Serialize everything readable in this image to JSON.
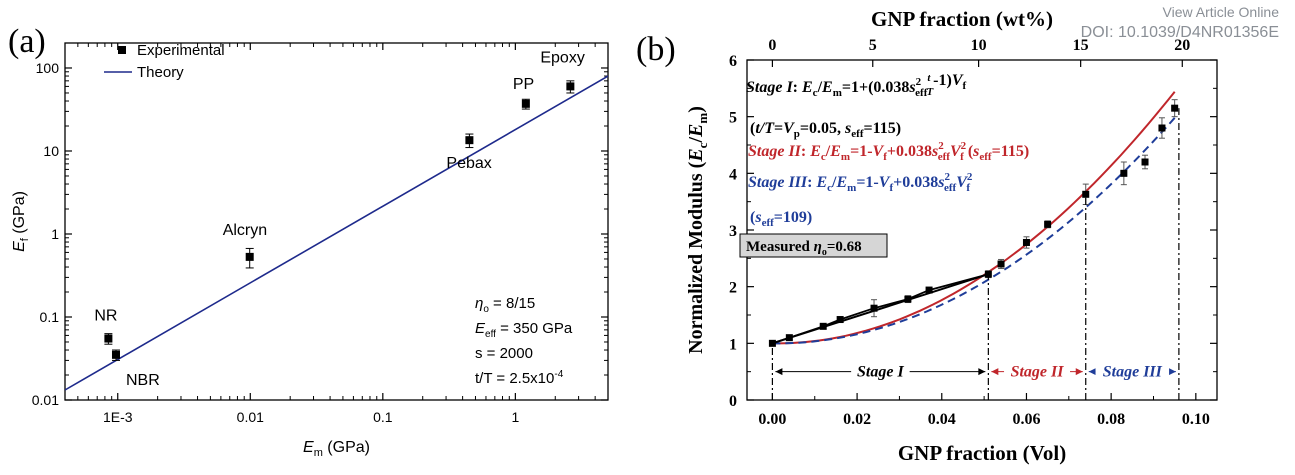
{
  "header": {
    "view_article": "View Article Online",
    "doi": "DOI: 10.1039/D4NR01356E"
  },
  "chart_data": [
    {
      "type": "scatter",
      "panel_label": "(a)",
      "xlabel": "E_m (GPa)",
      "ylabel": "E_f (GPa)",
      "xscale": "log",
      "yscale": "log",
      "xlim": [
        0.0004,
        5
      ],
      "ylim": [
        0.01,
        200
      ],
      "x_ticks": [
        {
          "v": 0.001,
          "label": "1E-3"
        },
        {
          "v": 0.01,
          "label": "0.01"
        },
        {
          "v": 0.1,
          "label": "0.1"
        },
        {
          "v": 1,
          "label": "1"
        }
      ],
      "y_ticks": [
        {
          "v": 0.01,
          "label": "0.01"
        },
        {
          "v": 0.1,
          "label": "0.1"
        },
        {
          "v": 1,
          "label": "1"
        },
        {
          "v": 10,
          "label": "10"
        },
        {
          "v": 100,
          "label": "100"
        }
      ],
      "legend": {
        "position": "top-left",
        "entries": [
          "Experimental",
          "Theory"
        ]
      },
      "series": [
        {
          "name": "Experimental",
          "points": [
            {
              "label": "NR",
              "x": 0.00085,
              "y": 0.055,
              "err": 0.008
            },
            {
              "label": "NBR",
              "x": 0.00097,
              "y": 0.035,
              "err": 0.005
            },
            {
              "label": "Alcryn",
              "x": 0.0099,
              "y": 0.53,
              "err": 0.14
            },
            {
              "label": "Pebax",
              "x": 0.45,
              "y": 13.5,
              "err": 2.5
            },
            {
              "label": "PP",
              "x": 1.2,
              "y": 37,
              "err": 5
            },
            {
              "label": "Epoxy",
              "x": 2.6,
              "y": 60,
              "err": 10
            }
          ]
        },
        {
          "name": "Theory",
          "line": [
            [
              0.0004,
              0.0132
            ],
            [
              5,
              80
            ]
          ]
        }
      ],
      "annotations": {
        "eta": "η",
        "eta_sub": "o",
        "eta_val": " = 8/15",
        "eeff": "E",
        "eeff_sub": "eff",
        "eeff_val": " = 350 GPa",
        "s_line": "s = 2000",
        "tt": "t/T = 2.5x10",
        "tt_exp": "-4"
      },
      "colors": {
        "theory": "#1e2a8c",
        "points": "#000000"
      }
    },
    {
      "type": "line",
      "panel_label": "(b)",
      "xlabel": "GNP fraction (Vol)",
      "top_xlabel": "GNP fraction (wt%)",
      "ylabel": "Normalized Modulus (E_c/E_m)",
      "xlim": [
        -0.006,
        0.105
      ],
      "ylim": [
        0,
        6
      ],
      "x_ticks": [
        "0.00",
        "0.02",
        "0.04",
        "0.06",
        "0.08",
        "0.10"
      ],
      "x_tick_values": [
        0,
        0.02,
        0.04,
        0.06,
        0.08,
        0.1
      ],
      "top_ticks": [
        {
          "v": 0.0,
          "label": "0"
        },
        {
          "v": 0.0237,
          "label": "5"
        },
        {
          "v": 0.0487,
          "label": "10"
        },
        {
          "v": 0.0728,
          "label": "15"
        },
        {
          "v": 0.0968,
          "label": "20"
        }
      ],
      "y_ticks": [
        0,
        1,
        2,
        3,
        4,
        5,
        6
      ],
      "measured": [
        {
          "x": 0.0,
          "y": 1.0,
          "err": 0.03
        },
        {
          "x": 0.004,
          "y": 1.1,
          "err": 0.03
        },
        {
          "x": 0.012,
          "y": 1.3,
          "err": 0.03
        },
        {
          "x": 0.016,
          "y": 1.42,
          "err": 0.04
        },
        {
          "x": 0.024,
          "y": 1.62,
          "err": 0.15
        },
        {
          "x": 0.032,
          "y": 1.78,
          "err": 0.06
        },
        {
          "x": 0.037,
          "y": 1.94,
          "err": 0.04
        },
        {
          "x": 0.051,
          "y": 2.22,
          "err": 0.06
        },
        {
          "x": 0.054,
          "y": 2.4,
          "err": 0.08
        },
        {
          "x": 0.06,
          "y": 2.78,
          "err": 0.1
        },
        {
          "x": 0.065,
          "y": 3.1,
          "err": 0.06
        },
        {
          "x": 0.074,
          "y": 3.63,
          "err": 0.18
        },
        {
          "x": 0.083,
          "y": 4.0,
          "err": 0.2
        },
        {
          "x": 0.088,
          "y": 4.2,
          "err": 0.12
        },
        {
          "x": 0.092,
          "y": 4.8,
          "err": 0.18
        },
        {
          "x": 0.095,
          "y": 5.15,
          "err": 0.15
        }
      ],
      "stage1_line": [
        [
          0.0,
          1.0
        ],
        [
          0.051,
          2.22
        ]
      ],
      "stage2_curve": {
        "formula": "1 - x + 0.038*115^2*x^2",
        "from": 0,
        "to": 0.095
      },
      "stage3_curve": {
        "formula": "1 - x + 0.038*109^2*x^2",
        "from": 0,
        "to": 0.095
      },
      "stage_boundaries": [
        0.0,
        0.051,
        0.074,
        0.096
      ],
      "stage_labels": [
        "Stage I",
        "Stage II",
        "Stage III"
      ],
      "annotations": {
        "stage1": "Stage I: E_c/E_m=1+(0.038s_eff^2 t/T-1)V_f",
        "params": "(t/T=V_p=0.05, s_eff=115)",
        "stage2": "Stage II: E_c/E_m=1-V_f+0.038s_eff^2V_f^2 (s_eff=115)",
        "stage3": "Stage III: E_c/E_m=1-V_f+0.038s_eff^2V_f^2",
        "stage3_param": "(s_eff=109)",
        "measured_box": "Measured η_o=0.68"
      },
      "colors": {
        "stage1": "#000000",
        "stage2": "#c0262b",
        "stage3": "#1f3d99"
      }
    }
  ]
}
